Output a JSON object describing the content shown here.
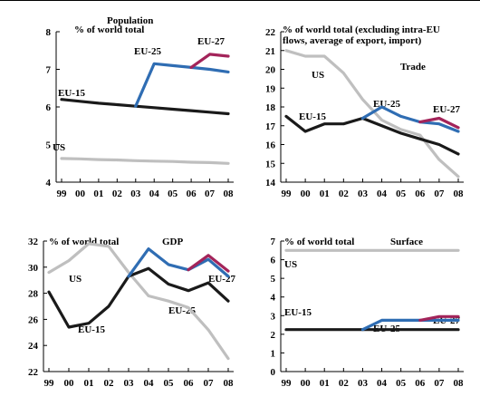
{
  "colors": {
    "eu15": "#1a1a1a",
    "eu25": "#2f6db3",
    "eu27": "#a3245a",
    "us": "#bfbfbf",
    "axis": "#000000"
  },
  "chart_data": [
    {
      "type": "line",
      "title": "Population",
      "unit_label": "% of world total",
      "x": [
        "99",
        "00",
        "01",
        "02",
        "03",
        "04",
        "05",
        "06",
        "07",
        "08"
      ],
      "ylim": [
        4,
        8
      ],
      "yticks": [
        4,
        5,
        6,
        7,
        8
      ],
      "series": [
        {
          "name": "EU-15",
          "key": "eu15",
          "values": [
            6.2,
            6.15,
            6.1,
            6.06,
            6.02,
            5.98,
            5.94,
            5.9,
            5.86,
            5.82
          ]
        },
        {
          "name": "EU-25",
          "key": "eu25",
          "values": [
            null,
            null,
            null,
            null,
            6.02,
            7.15,
            7.1,
            7.05,
            7.0,
            6.93
          ]
        },
        {
          "name": "EU-27",
          "key": "eu27",
          "values": [
            null,
            null,
            null,
            null,
            null,
            null,
            null,
            7.05,
            7.4,
            7.35
          ]
        },
        {
          "name": "US",
          "key": "us",
          "values": [
            4.63,
            4.62,
            4.6,
            4.59,
            4.57,
            4.56,
            4.55,
            4.53,
            4.52,
            4.5
          ]
        }
      ]
    },
    {
      "type": "line",
      "title": "Trade",
      "unit_label": "% of world total (excluding intra-EU flows, average of export, import)",
      "x": [
        "99",
        "00",
        "01",
        "02",
        "03",
        "04",
        "05",
        "06",
        "07",
        "08"
      ],
      "ylim": [
        14,
        22
      ],
      "yticks": [
        14,
        15,
        16,
        17,
        18,
        19,
        20,
        21,
        22
      ],
      "series": [
        {
          "name": "EU-15",
          "key": "eu15",
          "values": [
            17.5,
            16.7,
            17.1,
            17.1,
            17.4,
            17.0,
            16.6,
            16.3,
            16.0,
            15.5
          ]
        },
        {
          "name": "EU-25",
          "key": "eu25",
          "values": [
            null,
            null,
            null,
            null,
            17.4,
            18.0,
            17.5,
            17.2,
            17.1,
            16.7
          ]
        },
        {
          "name": "EU-27",
          "key": "eu27",
          "values": [
            null,
            null,
            null,
            null,
            null,
            null,
            null,
            17.2,
            17.4,
            16.9
          ]
        },
        {
          "name": "US",
          "key": "us",
          "values": [
            21.0,
            20.7,
            20.7,
            19.8,
            18.4,
            17.3,
            16.8,
            16.5,
            15.2,
            14.3
          ]
        }
      ]
    },
    {
      "type": "line",
      "title": "GDP",
      "unit_label": "% of world total",
      "x": [
        "99",
        "00",
        "01",
        "02",
        "03",
        "04",
        "05",
        "06",
        "07",
        "08"
      ],
      "ylim": [
        22,
        32
      ],
      "yticks": [
        22,
        24,
        26,
        28,
        30,
        32
      ],
      "series": [
        {
          "name": "EU-15",
          "key": "eu15",
          "values": [
            28.1,
            25.4,
            25.7,
            27.0,
            29.3,
            29.9,
            28.7,
            28.2,
            28.8,
            27.4
          ]
        },
        {
          "name": "EU-25",
          "key": "eu25",
          "values": [
            null,
            null,
            null,
            null,
            29.3,
            31.4,
            30.2,
            29.8,
            30.6,
            29.3
          ]
        },
        {
          "name": "EU-27",
          "key": "eu27",
          "values": [
            null,
            null,
            null,
            null,
            null,
            null,
            null,
            29.8,
            30.9,
            29.7
          ]
        },
        {
          "name": "US",
          "key": "us",
          "values": [
            29.6,
            30.5,
            31.8,
            31.6,
            29.6,
            27.8,
            27.4,
            26.9,
            25.2,
            23.0
          ]
        }
      ]
    },
    {
      "type": "line",
      "title": "Surface",
      "unit_label": "% of world total",
      "x": [
        "99",
        "00",
        "01",
        "02",
        "03",
        "04",
        "05",
        "06",
        "07",
        "08"
      ],
      "ylim": [
        0,
        7
      ],
      "yticks": [
        0,
        1,
        2,
        3,
        4,
        5,
        6,
        7
      ],
      "series": [
        {
          "name": "EU-15",
          "key": "eu15",
          "values": [
            2.25,
            2.25,
            2.25,
            2.25,
            2.25,
            2.25,
            2.25,
            2.25,
            2.25,
            2.25
          ]
        },
        {
          "name": "EU-25",
          "key": "eu25",
          "values": [
            null,
            null,
            null,
            null,
            2.25,
            2.75,
            2.75,
            2.75,
            2.75,
            2.75
          ]
        },
        {
          "name": "EU-27",
          "key": "eu27",
          "values": [
            null,
            null,
            null,
            null,
            null,
            null,
            null,
            2.75,
            2.95,
            2.95
          ]
        },
        {
          "name": "US",
          "key": "us",
          "values": [
            6.5,
            6.5,
            6.5,
            6.5,
            6.5,
            6.5,
            6.5,
            6.5,
            6.5,
            6.5
          ]
        }
      ]
    }
  ]
}
